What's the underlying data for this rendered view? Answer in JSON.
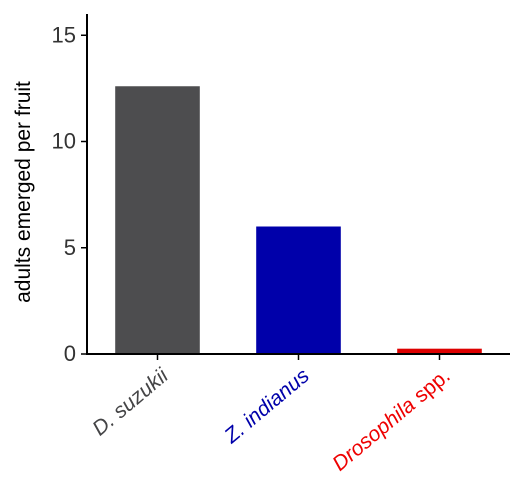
{
  "chart_data": {
    "type": "bar",
    "title": "",
    "xlabel": "",
    "ylabel": "adults emerged per fruit",
    "categories": [
      {
        "parts": [
          {
            "text": "D. suzukii",
            "italic": true
          }
        ],
        "color": "#444446"
      },
      {
        "parts": [
          {
            "text": "Z. indianus",
            "italic": true
          }
        ],
        "color": "#0000AA"
      },
      {
        "parts": [
          {
            "text": "Drosophila",
            "italic": true
          },
          {
            "text": " spp.",
            "italic": false
          }
        ],
        "color": "#EE0000"
      }
    ],
    "values": [
      12.6,
      6.0,
      0.25
    ],
    "bar_colors": [
      "#4D4D4F",
      "#0000AA",
      "#DD0000"
    ],
    "ylim": [
      0,
      16
    ],
    "yticks": [
      0,
      5,
      10,
      15
    ],
    "grid": false,
    "legend": "none"
  }
}
